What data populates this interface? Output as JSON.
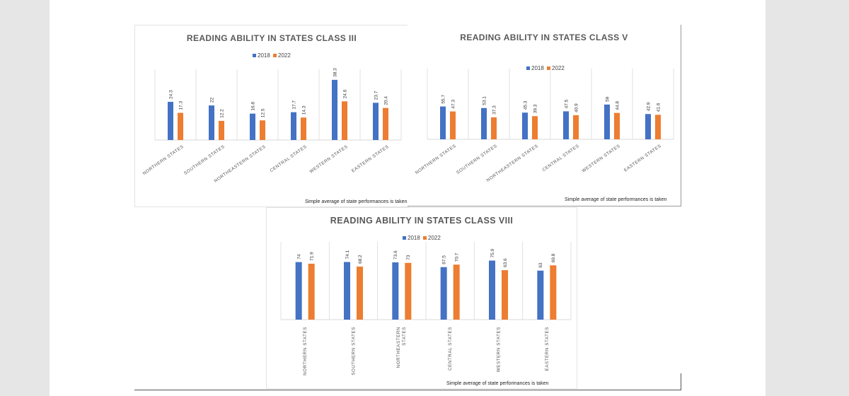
{
  "colors": {
    "s2018": "#4472c4",
    "s2022": "#ed7d31",
    "grid": "#d9d9d9"
  },
  "legend": {
    "s2018": "2018",
    "s2022": "2022"
  },
  "chart_data": [
    {
      "type": "bar",
      "title": "READING ABILITY IN STATES CLASS III",
      "categories": [
        "NORTHERN STATES",
        "SOUTHERN STATES",
        "NORTHEASTERN STATES",
        "CENTRAL STATES",
        "WESTERN STATES",
        "EASTERN STATES"
      ],
      "series": [
        {
          "name": "2018",
          "values": [
            24.3,
            22,
            16.8,
            17.7,
            38.3,
            23.7
          ],
          "labels": [
            "24.3",
            "22",
            "16.8",
            "17.7",
            "38.3",
            "23.7"
          ]
        },
        {
          "name": "2022",
          "values": [
            17.3,
            12.2,
            12.5,
            14.3,
            24.6,
            20.4
          ],
          "labels": [
            "17.3",
            "12.2",
            "12.5",
            "14.3",
            "24.6",
            "20.4"
          ]
        }
      ],
      "ylim": [
        0,
        45
      ],
      "note": "Simple average of state performances is taken"
    },
    {
      "type": "bar",
      "title": "READING ABILITY IN STATES CLASS V",
      "categories": [
        "NORTHERN STATES",
        "SOUTHERN STATES",
        "NORTHEASTERN STATES",
        "CENTRAL STATES",
        "WESTERN STATES",
        "EASTERN STATES"
      ],
      "series": [
        {
          "name": "2018",
          "values": [
            55.7,
            53.1,
            45.3,
            47.5,
            59,
            42.9
          ],
          "labels": [
            "55.7",
            "53.1",
            "45.3",
            "47.5",
            "59",
            "42.9"
          ]
        },
        {
          "name": "2022",
          "values": [
            47.3,
            37.3,
            39.3,
            40.9,
            44.8,
            41.6
          ],
          "labels": [
            "47.3",
            "37.3",
            "39.3",
            "40.9",
            "44.8",
            "41.6"
          ]
        }
      ],
      "ylim": [
        0,
        120
      ],
      "note": "Simple average of state performances is taken"
    },
    {
      "type": "bar",
      "title": "READING ABILITY IN STATES CLASS VIII",
      "categories": [
        "NORTHERN STATES",
        "SOUTHERN STATES",
        "NORTHEASTERN STATES",
        "CENTRAL STATES",
        "WESTERN STATES",
        "EASTERN STATES"
      ],
      "series": [
        {
          "name": "2018",
          "values": [
            74,
            74.1,
            73.6,
            67.5,
            75.9,
            63
          ],
          "labels": [
            "74",
            "74.1",
            "73.6",
            "67.5",
            "75.9",
            "63"
          ]
        },
        {
          "name": "2022",
          "values": [
            71.9,
            68.2,
            73,
            70.7,
            63.6,
            69.8
          ],
          "labels": [
            "71.9",
            "68.2",
            "73",
            "70.7",
            "63.6",
            "69.8"
          ]
        }
      ],
      "ylim": [
        0,
        100
      ],
      "note": "Simple average of state performances is taken"
    }
  ]
}
